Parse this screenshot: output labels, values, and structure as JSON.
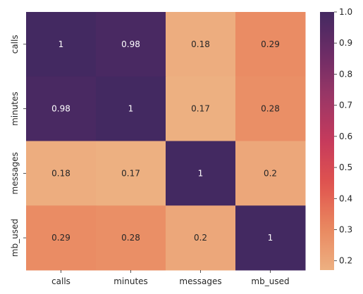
{
  "chart_data": {
    "type": "heatmap",
    "title": "",
    "xlabel": "",
    "ylabel": "",
    "x_categories": [
      "calls",
      "minutes",
      "messages",
      "mb_used"
    ],
    "y_categories": [
      "calls",
      "minutes",
      "messages",
      "mb_used"
    ],
    "values": [
      [
        1,
        0.98,
        0.18,
        0.29
      ],
      [
        0.98,
        1,
        0.17,
        0.28
      ],
      [
        0.18,
        0.17,
        1,
        0.2
      ],
      [
        0.29,
        0.28,
        0.2,
        1
      ]
    ],
    "annotations": [
      [
        "1",
        "0.98",
        "0.18",
        "0.29"
      ],
      [
        "0.98",
        "1",
        "0.17",
        "0.28"
      ],
      [
        "0.18",
        "0.17",
        "1",
        "0.2"
      ],
      [
        "0.29",
        "0.28",
        "0.2",
        "1"
      ]
    ],
    "colorbar": {
      "vmin": 0.17,
      "vmax": 1.0,
      "ticks": [
        0.2,
        0.3,
        0.4,
        0.5,
        0.6,
        0.7,
        0.8,
        0.9,
        1.0
      ],
      "tick_labels": [
        "0.2",
        "0.3",
        "0.4",
        "0.5",
        "0.6",
        "0.7",
        "0.8",
        "0.9",
        "1.0"
      ]
    },
    "colormap": "flare",
    "colormap_stops": [
      "#edb081",
      "#e9875f",
      "#e0544f",
      "#c63a5c",
      "#9c3766",
      "#6e2c66",
      "#432961"
    ]
  }
}
